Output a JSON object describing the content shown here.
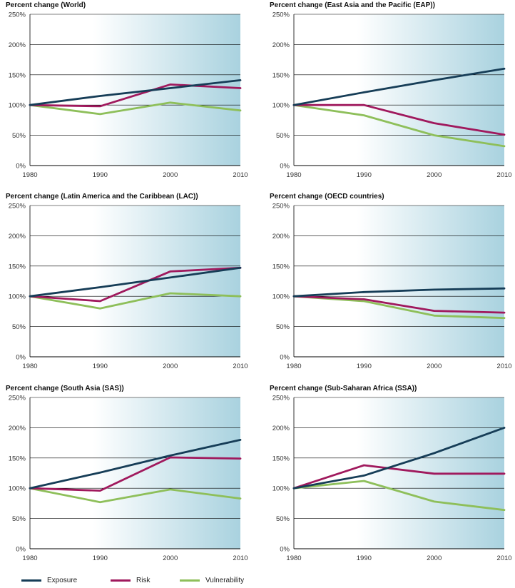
{
  "chart_data": [
    {
      "type": "line",
      "title": "Percent change (World)",
      "x": [
        1980,
        1990,
        2000,
        2010
      ],
      "y_ticks": [
        "0%",
        "50%",
        "100%",
        "150%",
        "200%",
        "250%"
      ],
      "ylim": [
        0,
        250
      ],
      "grid": true,
      "series": [
        {
          "name": "Exposure",
          "values": [
            100,
            115,
            128,
            141
          ]
        },
        {
          "name": "Risk",
          "values": [
            100,
            98,
            134,
            128
          ]
        },
        {
          "name": "Vulnerability",
          "values": [
            100,
            85,
            104,
            91
          ]
        }
      ]
    },
    {
      "type": "line",
      "title": "Percent change (East Asia and the Pacific (EAP))",
      "x": [
        1980,
        1990,
        2000,
        2010
      ],
      "y_ticks": [
        "0%",
        "50%",
        "100%",
        "150%",
        "200%",
        "250%"
      ],
      "ylim": [
        0,
        250
      ],
      "grid": true,
      "series": [
        {
          "name": "Exposure",
          "values": [
            100,
            121,
            141,
            160
          ]
        },
        {
          "name": "Risk",
          "values": [
            100,
            100,
            70,
            51
          ]
        },
        {
          "name": "Vulnerability",
          "values": [
            100,
            83,
            50,
            32
          ]
        }
      ]
    },
    {
      "type": "line",
      "title": "Percent change (Latin America and the Caribbean (LAC))",
      "x": [
        1980,
        1990,
        2000,
        2010
      ],
      "y_ticks": [
        "0%",
        "50%",
        "100%",
        "150%",
        "200%",
        "250%"
      ],
      "ylim": [
        0,
        250
      ],
      "grid": true,
      "series": [
        {
          "name": "Exposure",
          "values": [
            100,
            115,
            131,
            147
          ]
        },
        {
          "name": "Risk",
          "values": [
            100,
            92,
            141,
            147
          ]
        },
        {
          "name": "Vulnerability",
          "values": [
            100,
            80,
            105,
            100
          ]
        }
      ]
    },
    {
      "type": "line",
      "title": "Percent change (OECD countries)",
      "x": [
        1980,
        1990,
        2000,
        2010
      ],
      "y_ticks": [
        "0%",
        "50%",
        "100%",
        "150%",
        "200%",
        "250%"
      ],
      "ylim": [
        0,
        250
      ],
      "grid": true,
      "series": [
        {
          "name": "Exposure",
          "values": [
            100,
            107,
            111,
            113
          ]
        },
        {
          "name": "Risk",
          "values": [
            100,
            95,
            76,
            73
          ]
        },
        {
          "name": "Vulnerability",
          "values": [
            100,
            92,
            68,
            64
          ]
        }
      ]
    },
    {
      "type": "line",
      "title": "Percent change (South Asia (SAS))",
      "x": [
        1980,
        1990,
        2000,
        2010
      ],
      "y_ticks": [
        "0%",
        "50%",
        "100%",
        "150%",
        "200%",
        "250%"
      ],
      "ylim": [
        0,
        250
      ],
      "grid": true,
      "series": [
        {
          "name": "Exposure",
          "values": [
            100,
            126,
            154,
            180
          ]
        },
        {
          "name": "Risk",
          "values": [
            100,
            96,
            151,
            149
          ]
        },
        {
          "name": "Vulnerability",
          "values": [
            100,
            77,
            98,
            83
          ]
        }
      ]
    },
    {
      "type": "line",
      "title": "Percent change (Sub-Saharan Africa (SSA))",
      "x": [
        1980,
        1990,
        2000,
        2010
      ],
      "y_ticks": [
        "0%",
        "50%",
        "100%",
        "150%",
        "200%",
        "250%"
      ],
      "ylim": [
        0,
        250
      ],
      "grid": true,
      "series": [
        {
          "name": "Exposure",
          "values": [
            100,
            121,
            158,
            200
          ]
        },
        {
          "name": "Risk",
          "values": [
            100,
            138,
            124,
            124
          ]
        },
        {
          "name": "Vulnerability",
          "values": [
            100,
            112,
            78,
            64
          ]
        }
      ]
    }
  ],
  "legend": [
    {
      "name": "Exposure",
      "color": "#163d57"
    },
    {
      "name": "Risk",
      "color": "#a0195d"
    },
    {
      "name": "Vulnerability",
      "color": "#8ebf5a"
    }
  ],
  "colors": {
    "Exposure": "#163d57",
    "Risk": "#a0195d",
    "Vulnerability": "#8ebf5a",
    "gradient_start": "#ffffff",
    "gradient_end": "#a9d2df",
    "grid": "#000000"
  }
}
